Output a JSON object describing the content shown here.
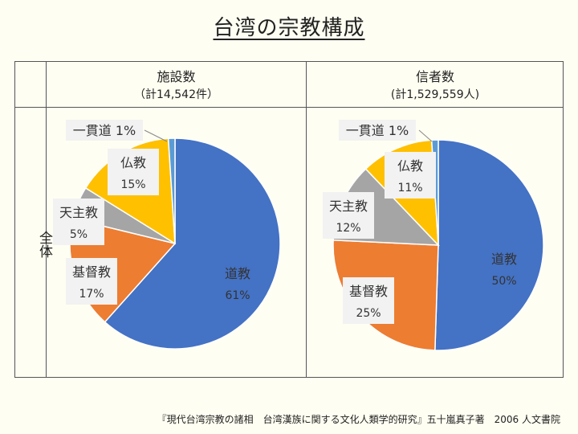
{
  "title": "台湾の宗教構成",
  "row_label": "全体",
  "source": "『現代台湾宗教の諸相　台湾漢族に関する文化人類学的研究』五十嵐真子著　2006 人文書院",
  "columns": [
    {
      "header": "施設数",
      "subheader": "（計14,542件）"
    },
    {
      "header": "信者数",
      "subheader": "(計1,529,559人)"
    }
  ],
  "colors": {
    "道教": "#4472c4",
    "基督教": "#ed7d31",
    "天主教": "#a5a5a5",
    "仏教": "#ffc000",
    "一貫道": "#5b9bd5"
  },
  "chart_data": [
    {
      "type": "pie",
      "title": "施設数",
      "categories": [
        "道教",
        "基督教",
        "天主教",
        "仏教",
        "一貫道"
      ],
      "values": [
        61,
        17,
        5,
        15,
        1
      ],
      "labels": [
        "61%",
        "17%",
        "5%",
        "15%",
        "1%"
      ],
      "unit": "%"
    },
    {
      "type": "pie",
      "title": "信者数",
      "categories": [
        "道教",
        "基督教",
        "天主教",
        "仏教",
        "一貫道"
      ],
      "values": [
        50,
        25,
        12,
        11,
        1
      ],
      "labels": [
        "50%",
        "25%",
        "12%",
        "11%",
        "1%"
      ],
      "unit": "%"
    }
  ]
}
